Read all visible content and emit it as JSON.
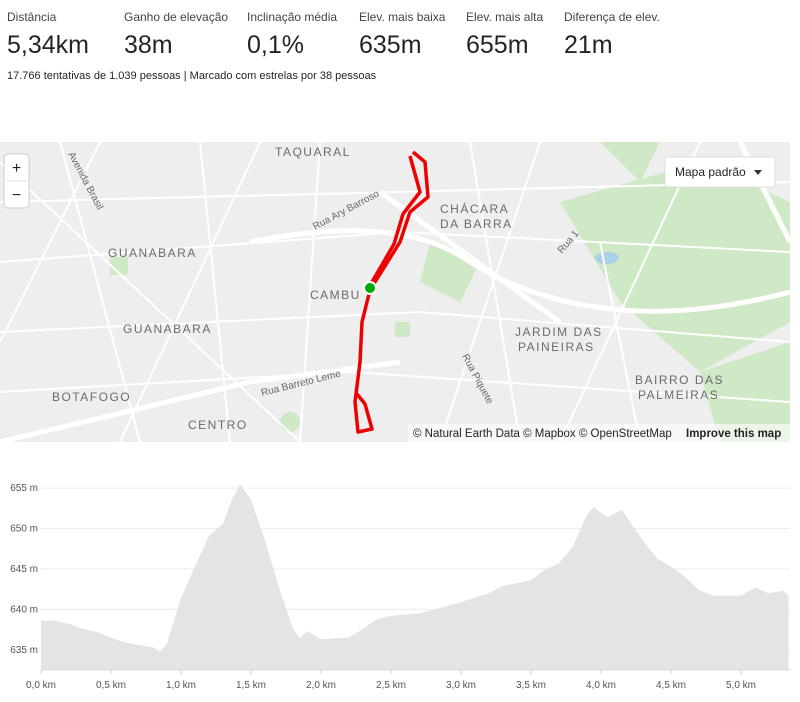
{
  "stats": [
    {
      "label": "Distância",
      "value": "5,34km"
    },
    {
      "label": "Ganho de elevação",
      "value": "38m"
    },
    {
      "label": "Inclinação média",
      "value": "0,1%"
    },
    {
      "label": "Elev. mais baixa",
      "value": "635m"
    },
    {
      "label": "Elev. mais alta",
      "value": "655m"
    },
    {
      "label": "Diferença de elev.",
      "value": "21m"
    }
  ],
  "summary": "17.766 tentativas de 1.039 pessoas | Marcado com estrelas por 38 pessoas",
  "map": {
    "labels": [
      "TAQUARAL",
      "Avenida Brasil",
      "Rua Ary Barroso",
      "GUANABARA",
      "GUANABARA",
      "CAMBU",
      "CHÁCARA",
      "DA BARRA",
      "JARDIM DAS",
      "PAINEIRAS",
      "BAIRRO DAS",
      "PALMEIRAS",
      "BOTAFOGO",
      "CENTRO",
      "Rua Barreto Leme",
      "Rua Piquete",
      "Rua 1"
    ],
    "zoom_in": "+",
    "zoom_out": "−",
    "style_button": "Mapa padrão",
    "attribution": "© Natural Earth Data © Mapbox © OpenStreetMap",
    "improve": "Improve this map"
  },
  "chart_data": {
    "type": "area",
    "x": [
      0,
      0.1,
      0.2,
      0.3,
      0.4,
      0.5,
      0.6,
      0.7,
      0.8,
      0.85,
      0.9,
      1.0,
      1.1,
      1.2,
      1.3,
      1.35,
      1.42,
      1.5,
      1.6,
      1.7,
      1.8,
      1.85,
      1.9,
      2.0,
      2.2,
      2.3,
      2.4,
      2.5,
      2.7,
      2.9,
      3.0,
      3.2,
      3.3,
      3.5,
      3.6,
      3.7,
      3.8,
      3.9,
      3.95,
      4.0,
      4.05,
      4.1,
      4.15,
      4.2,
      4.3,
      4.4,
      4.5,
      4.6,
      4.7,
      4.8,
      4.9,
      5.0,
      5.1,
      5.2,
      5.3,
      5.34
    ],
    "values": [
      638.6,
      638.6,
      638.2,
      637.6,
      637.2,
      636.5,
      635.9,
      635.6,
      635.3,
      634.7,
      635.8,
      641.4,
      645.3,
      649.1,
      650.6,
      653.0,
      655.5,
      653.6,
      648.5,
      642.7,
      637.6,
      636.5,
      637.3,
      636.3,
      636.5,
      637.6,
      638.8,
      639.2,
      639.5,
      640.4,
      640.9,
      642.0,
      642.9,
      643.6,
      644.9,
      645.7,
      647.8,
      651.7,
      652.7,
      651.9,
      651.4,
      651.9,
      652.3,
      651.0,
      648.5,
      646.3,
      645.3,
      644.0,
      642.4,
      641.7,
      641.7,
      641.7,
      642.7,
      642.0,
      642.3,
      641.7
    ],
    "color": "#e4e4e4",
    "xlim": [
      0,
      5.35
    ],
    "ylim": [
      632.5,
      656
    ],
    "xticks": [
      {
        "value": 0,
        "label": "0,0 km"
      },
      {
        "value": 0.5,
        "label": "0,5 km"
      },
      {
        "value": 1,
        "label": "1,0 km"
      },
      {
        "value": 1.5,
        "label": "1,5 km"
      },
      {
        "value": 2,
        "label": "2,0 km"
      },
      {
        "value": 2.5,
        "label": "2,5 km"
      },
      {
        "value": 3,
        "label": "3,0 km"
      },
      {
        "value": 3.5,
        "label": "3,5 km"
      },
      {
        "value": 4,
        "label": "4,0 km"
      },
      {
        "value": 4.5,
        "label": "4,5 km"
      },
      {
        "value": 5,
        "label": "5,0 km"
      }
    ],
    "yticks": [
      {
        "value": 635,
        "label": "635 m"
      },
      {
        "value": 640,
        "label": "640 m"
      },
      {
        "value": 645,
        "label": "645 m"
      },
      {
        "value": 650,
        "label": "650 m"
      },
      {
        "value": 655,
        "label": "655 m"
      }
    ],
    "grid": true
  }
}
